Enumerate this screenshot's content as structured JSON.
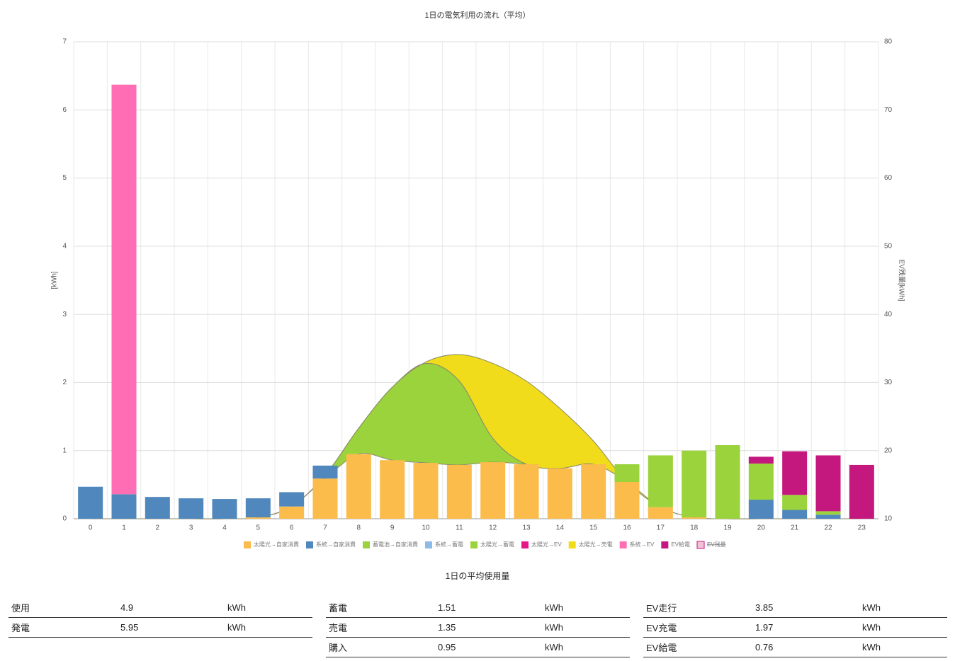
{
  "chart_data": {
    "type": "bar",
    "title": "1日の電気利用の流れ（平均）",
    "y_label": "[kWh]",
    "y2_label": "EV残量[kWh]",
    "categories": [
      0,
      1,
      2,
      3,
      4,
      5,
      6,
      7,
      8,
      9,
      10,
      11,
      12,
      13,
      14,
      15,
      16,
      17,
      18,
      19,
      20,
      21,
      22,
      23
    ],
    "ylim": [
      0,
      7
    ],
    "yticks": [
      0,
      1,
      2,
      3,
      4,
      5,
      6,
      7
    ],
    "y2lim": [
      10,
      80
    ],
    "y2ticks": [
      10,
      20,
      30,
      40,
      50,
      60,
      70,
      80
    ],
    "grid": true,
    "legend": "bottom",
    "series": [
      {
        "name": "太陽光→自家消費",
        "color": "#fbbc4b",
        "kind": "bar",
        "values": [
          0,
          0,
          0,
          0,
          0,
          0.02,
          0.18,
          0.59,
          0.95,
          0.86,
          0.82,
          0.79,
          0.83,
          0.8,
          0.74,
          0.8,
          0.54,
          0.17,
          0.02,
          0,
          0,
          0,
          0,
          0
        ]
      },
      {
        "name": "系統→自家消費",
        "color": "#5088bd",
        "kind": "bar",
        "values": [
          0.47,
          0.36,
          0.32,
          0.3,
          0.29,
          0.28,
          0.21,
          0.19,
          0,
          0,
          0,
          0,
          0,
          0,
          0,
          0,
          0,
          0,
          0,
          0,
          0.28,
          0.13,
          0.06,
          0
        ]
      },
      {
        "name": "蓄電池→自家消費",
        "color": "#9bd33c",
        "kind": "bar",
        "values": [
          0,
          0,
          0,
          0,
          0,
          0,
          0,
          0,
          0,
          0,
          0,
          0,
          0,
          0,
          0,
          0,
          0.26,
          0.76,
          0.98,
          1.08,
          0.53,
          0.22,
          0.05,
          0
        ]
      },
      {
        "name": "系統→蓄電",
        "color": "#8cbbe8",
        "kind": "bar",
        "values": [
          0,
          0,
          0,
          0,
          0,
          0,
          0,
          0,
          0,
          0,
          0,
          0,
          0,
          0,
          0,
          0,
          0,
          0,
          0,
          0,
          0,
          0,
          0,
          0
        ]
      },
      {
        "name": "太陽光→蓄電",
        "color": "#9bd33c",
        "kind": "area",
        "values": [
          0,
          0,
          0,
          0,
          0,
          0,
          0,
          0.05,
          0.38,
          1.07,
          1.46,
          1.23,
          0.35,
          0,
          0,
          0,
          0,
          0,
          0,
          0,
          0,
          0,
          0,
          0
        ]
      },
      {
        "name": "太陽光→EV",
        "color": "#e6168a",
        "kind": "bar",
        "values": [
          0,
          0,
          0,
          0,
          0,
          0,
          0,
          0,
          0,
          0,
          0,
          0,
          0,
          0,
          0,
          0,
          0,
          0,
          0,
          0,
          0,
          0,
          0,
          0
        ]
      },
      {
        "name": "太陽光→売電",
        "color": "#f0dc1a",
        "kind": "area",
        "values": [
          0,
          0,
          0,
          0,
          0,
          0,
          0,
          0,
          0,
          0,
          0.02,
          0.39,
          1.1,
          1.22,
          0.88,
          0.34,
          0,
          0,
          0,
          0,
          0,
          0,
          0,
          0
        ]
      },
      {
        "name": "系統→EV",
        "color": "#ff6eb4",
        "kind": "bar",
        "values": [
          0,
          6.01,
          0,
          0,
          0,
          0,
          0,
          0,
          0,
          0,
          0,
          0,
          0,
          0,
          0,
          0,
          0,
          0,
          0,
          0,
          0,
          0,
          0,
          0
        ]
      },
      {
        "name": "EV給電",
        "color": "#c4187f",
        "kind": "bar",
        "values": [
          0,
          0,
          0,
          0,
          0,
          0,
          0,
          0,
          0,
          0,
          0,
          0,
          0,
          0,
          0,
          0,
          0,
          0,
          0,
          0,
          0.1,
          0.64,
          0.82,
          0.79
        ]
      },
      {
        "name": "EV残量",
        "color": "#f4c2d8",
        "kind": "line",
        "hidden": true
      }
    ]
  },
  "summary": {
    "title": "1日の平均使用量",
    "tables": [
      [
        [
          "使用",
          4.9,
          "kWh"
        ],
        [
          "発電",
          5.95,
          "kWh"
        ]
      ],
      [
        [
          "蓄電",
          1.51,
          "kWh"
        ],
        [
          "売電",
          1.35,
          "kWh"
        ],
        [
          "購入",
          0.95,
          "kWh"
        ]
      ],
      [
        [
          "EV走行",
          3.85,
          "kWh"
        ],
        [
          "EV充電",
          1.97,
          "kWh"
        ],
        [
          "EV給電",
          0.76,
          "kWh"
        ]
      ]
    ]
  }
}
